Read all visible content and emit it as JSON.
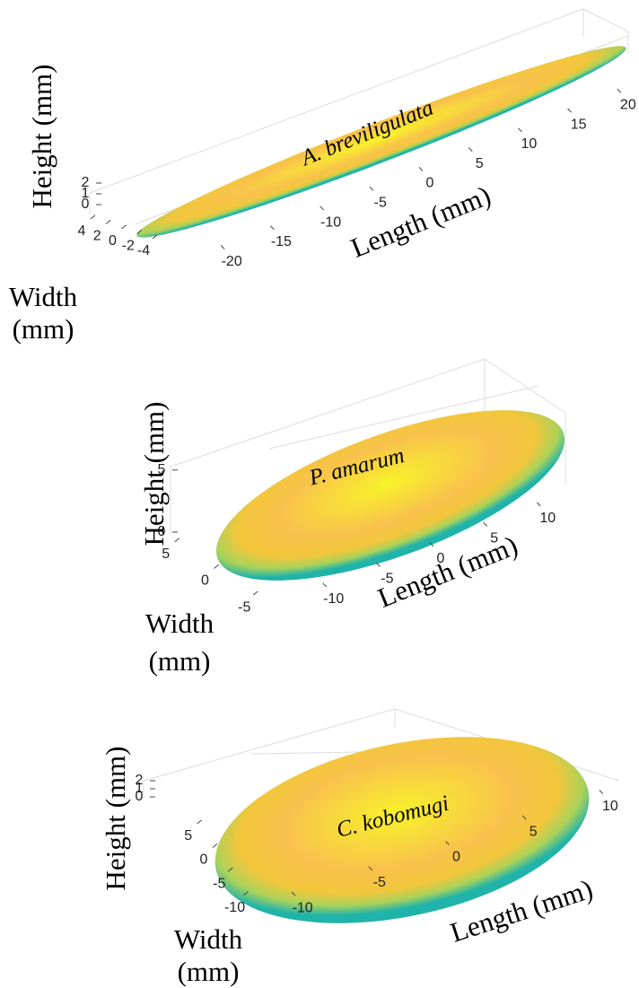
{
  "chart_data": [
    {
      "type": "surface",
      "annotation": "A. breviligulata",
      "xlabel": "Length (mm)",
      "ylabel": [
        "Width",
        "(mm)"
      ],
      "zlabel": "Height (mm)",
      "xlim": [
        -24,
        24
      ],
      "xticks": [
        -20,
        -15,
        -10,
        -5,
        0,
        5,
        10,
        15,
        20
      ],
      "ylim": [
        -4,
        4
      ],
      "yticks": [
        4,
        2,
        0,
        -2,
        -4
      ],
      "zlim": [
        0,
        2
      ],
      "zticks": [
        0,
        1,
        2
      ]
    },
    {
      "type": "surface",
      "annotation": "P. amarum",
      "xlabel": "Length (mm)",
      "ylabel": [
        "Width",
        "(mm)"
      ],
      "zlabel": "Height (mm)",
      "xlim": [
        -14,
        14
      ],
      "xticks": [
        -10,
        -5,
        0,
        5,
        10
      ],
      "ylim": [
        -6,
        6
      ],
      "yticks": [
        5,
        0,
        -5
      ],
      "zlim": [
        0,
        6
      ],
      "zticks": [
        0,
        5
      ]
    },
    {
      "type": "surface",
      "annotation": "C. kobomugi",
      "xlabel": "Length (mm)",
      "ylabel": [
        "Width",
        "(mm)"
      ],
      "zlabel": "Height (mm)",
      "xlim": [
        -11,
        11
      ],
      "xticks": [
        -10,
        -5,
        0,
        5,
        10
      ],
      "ylim": [
        -11,
        11
      ],
      "yticks": [
        5,
        0,
        -5,
        -10
      ],
      "zlim": [
        0,
        2
      ],
      "zticks": [
        0,
        1,
        2
      ]
    }
  ]
}
